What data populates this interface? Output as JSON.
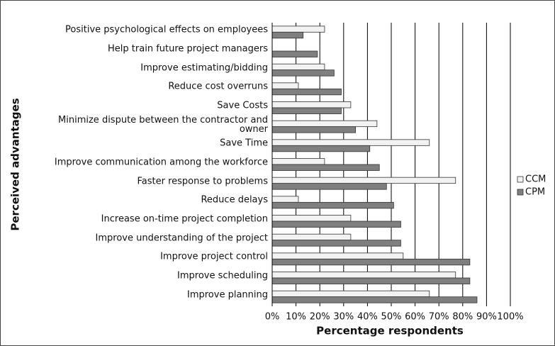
{
  "chart_data": {
    "type": "hbar",
    "y_label": "Perceived advantages",
    "x_label": "Percentage respondents",
    "categories": [
      "Positive psychological effects on employees",
      "Help train future project managers",
      "Improve estimating/bidding",
      "Reduce cost overruns",
      "Save Costs",
      "Minimize dispute between the contractor and owner",
      "Save Time",
      "Improve communication among the workforce",
      "Faster response to problems",
      "Reduce delays",
      "Increase on-time project completion",
      "Improve understanding of the project",
      "Improve project control",
      "Improve scheduling",
      "Improve planning"
    ],
    "series": [
      {
        "name": "CCM",
        "color": "#f2f2f2",
        "values": [
          22,
          0,
          22,
          11,
          33,
          44,
          66,
          22,
          77,
          11,
          33,
          33,
          55,
          77,
          66
        ]
      },
      {
        "name": "CPM",
        "color": "#7f7f7f",
        "values": [
          13,
          19,
          26,
          29,
          29,
          35,
          41,
          45,
          48,
          51,
          54,
          54,
          83,
          83,
          86
        ]
      }
    ],
    "xlim": [
      0,
      100
    ],
    "xticks": [
      {
        "value": 0,
        "label": "0%"
      },
      {
        "value": 10,
        "label": "10%"
      },
      {
        "value": 20,
        "label": "20%"
      },
      {
        "value": 30,
        "label": "30%"
      },
      {
        "value": 40,
        "label": "40%"
      },
      {
        "value": 50,
        "label": "50%"
      },
      {
        "value": 60,
        "label": "60%"
      },
      {
        "value": 70,
        "label": "70%"
      },
      {
        "value": 80,
        "label": "80%"
      },
      {
        "value": 90,
        "label": "90%"
      },
      {
        "value": 100,
        "label": "100%"
      }
    ],
    "grid": true,
    "legend": "right"
  }
}
